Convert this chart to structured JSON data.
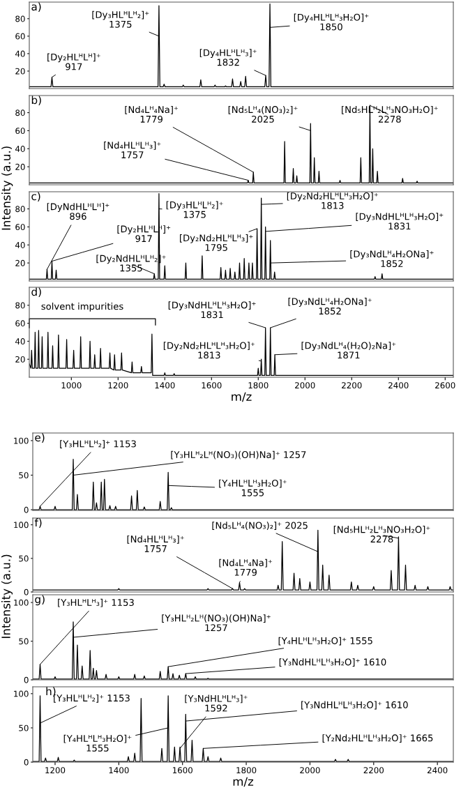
{
  "chart_data": [
    {
      "type": "line",
      "title": "a)",
      "color": "#000000",
      "xlim": [
        820,
        2635
      ],
      "ylim": [
        0,
        99
      ],
      "yticks": [
        20,
        40,
        60,
        80
      ],
      "tick_labels": "y",
      "x": [
        820,
        913,
        917,
        921,
        1371,
        1375,
        1379,
        1393,
        1397,
        1401,
        1475,
        1479,
        1483,
        1550,
        1554,
        1558,
        1611,
        1615,
        1619,
        1656,
        1660,
        1664,
        1686,
        1690,
        1694,
        1721,
        1725,
        1729,
        1742,
        1746,
        1750,
        1828,
        1832,
        1836,
        1846,
        1850,
        1854,
        2635
      ],
      "values": [
        2,
        2,
        13,
        2,
        2,
        95,
        2,
        2,
        5,
        2,
        2,
        4,
        2,
        2,
        10,
        2,
        2,
        4,
        2,
        2,
        3,
        2,
        2,
        11,
        2,
        2,
        8,
        2,
        2,
        14,
        2,
        2,
        15,
        2,
        2,
        97,
        2,
        2
      ],
      "annotations": [
        {
          "text": "[Dy₂HLᴴLᴴ]⁺\n917",
          "x": 917,
          "y": 13
        },
        {
          "text": "[Dy₃HLᴴLᴴ₂]⁺\n1375",
          "x": 1375,
          "y": 60
        },
        {
          "text": "[Dy₄HLᴴLᴴ₃]⁺\n1832",
          "x": 1832,
          "y": 15
        },
        {
          "text": "[Dy₄HLᴴLᴴ₃H₂O]⁺\n1850",
          "x": 1850,
          "y": 70
        }
      ]
    },
    {
      "type": "line",
      "title": "b)",
      "color": "#000000",
      "xlim": [
        820,
        2635
      ],
      "ylim": [
        0,
        99
      ],
      "yticks": [
        20,
        40,
        60,
        80
      ],
      "tick_labels": "y",
      "x": [
        820,
        1754,
        1757,
        1760,
        1776,
        1779,
        1782,
        1910,
        1913,
        1916,
        1947,
        1950,
        1953,
        1962,
        1965,
        1968,
        2021,
        2024,
        2027,
        2037,
        2040,
        2043,
        2057,
        2060,
        2063,
        2147,
        2150,
        2153,
        2236,
        2239,
        2242,
        2275,
        2278,
        2281,
        2287,
        2290,
        2293,
        2307,
        2310,
        2313,
        2415,
        2418,
        2421,
        2477,
        2480,
        2483,
        2635
      ],
      "values": [
        2,
        2,
        5,
        2,
        2,
        14,
        2,
        2,
        48,
        2,
        2,
        18,
        2,
        2,
        10,
        2,
        2,
        68,
        2,
        2,
        30,
        2,
        2,
        15,
        2,
        2,
        5,
        2,
        2,
        30,
        2,
        2,
        88,
        2,
        2,
        40,
        2,
        2,
        15,
        2,
        2,
        7,
        2,
        2,
        4,
        2,
        2
      ],
      "annotations": [
        {
          "text": "[Nd₄Lᴴ₄Na]⁺\n1779",
          "x": 1779,
          "y": 14
        },
        {
          "text": "[Nd₅Lᴴ₄(NO₃)₂]⁺\n2025",
          "x": 2025,
          "y": 60
        },
        {
          "text": "[Nd₅HLᴴ₂Lᴴ₃NO₃H₂O]⁺\n2278",
          "x": 2278,
          "y": 88
        },
        {
          "text": "[Nd₄HLᴴLᴴ₃]⁺\n1757",
          "x": 1757,
          "y": 5
        }
      ]
    },
    {
      "type": "line",
      "title": "c)",
      "ylabel": "Intensity (a.u.)",
      "color": "#000000",
      "xlim": [
        820,
        2635
      ],
      "ylim": [
        0,
        99
      ],
      "yticks": [
        20,
        40,
        60,
        80
      ],
      "tick_labels": "y",
      "x": [
        820,
        893,
        896,
        899,
        914,
        917,
        920,
        932,
        935,
        938,
        1352,
        1355,
        1358,
        1372,
        1375,
        1378,
        1397,
        1400,
        1403,
        1487,
        1490,
        1493,
        1557,
        1560,
        1563,
        1637,
        1640,
        1643,
        1657,
        1660,
        1663,
        1677,
        1680,
        1683,
        1697,
        1700,
        1703,
        1717,
        1720,
        1723,
        1737,
        1740,
        1743,
        1757,
        1760,
        1763,
        1772,
        1775,
        1778,
        1792,
        1795,
        1798,
        1810,
        1813,
        1816,
        1828,
        1831,
        1834,
        1849,
        1852,
        1855,
        1867,
        1870,
        1873,
        2297,
        2300,
        2303,
        2327,
        2330,
        2333,
        2635
      ],
      "values": [
        2,
        2,
        13,
        2,
        2,
        22,
        2,
        2,
        12,
        2,
        2,
        8,
        2,
        2,
        97,
        2,
        2,
        17,
        2,
        2,
        20,
        2,
        2,
        28,
        2,
        2,
        15,
        2,
        2,
        12,
        2,
        2,
        14,
        2,
        2,
        10,
        2,
        2,
        20,
        2,
        2,
        25,
        2,
        2,
        20,
        2,
        2,
        20,
        2,
        2,
        58,
        2,
        2,
        92,
        2,
        2,
        60,
        2,
        2,
        45,
        2,
        2,
        10,
        2,
        2,
        5,
        2,
        2,
        8,
        2,
        2
      ],
      "annotations": [
        {
          "text": "[DyNdHLᴴLᴴ]⁺\n896",
          "x": 896,
          "y": 13
        },
        {
          "text": "[Dy₂HLᴴLᴴ]⁺\n917",
          "x": 917,
          "y": 22
        },
        {
          "text": "[Dy₂NdHLᴴLᴴ₂]⁺\n1355",
          "x": 1355,
          "y": 8
        },
        {
          "text": "[Dy₃HLᴴLᴴ₂]⁺\n1375",
          "x": 1375,
          "y": 80
        },
        {
          "text": "[Dy₂Nd₂HLᴴLᴴ₃]⁺\n1795",
          "x": 1795,
          "y": 58
        },
        {
          "text": "[Dy₂Nd₂HLᴴLᴴ₃H₂O]⁺\n1813",
          "x": 1813,
          "y": 85
        },
        {
          "text": "[Dy₃NdHLᴴLᴴ₃H₂O]⁺\n1831",
          "x": 1831,
          "y": 55
        },
        {
          "text": "[Dy₃NdLᴴ₄H₂ONa]⁺\n1852",
          "x": 1852,
          "y": 20
        }
      ]
    },
    {
      "type": "line",
      "title": "d)",
      "xlabel": "m/z",
      "color": "#000000",
      "xlim": [
        820,
        2635
      ],
      "ylim": [
        0,
        100
      ],
      "yticks": [
        20,
        40,
        60,
        80
      ],
      "xticks": [
        1000,
        1200,
        1400,
        1600,
        1800,
        2000,
        2200,
        2400,
        2600
      ],
      "x": [
        820,
        827,
        830,
        833,
        842,
        845,
        848,
        857,
        860,
        863,
        872,
        875,
        878,
        897,
        900,
        903,
        917,
        920,
        923,
        942,
        945,
        948,
        977,
        980,
        983,
        1007,
        1010,
        1013,
        1037,
        1040,
        1043,
        1077,
        1080,
        1083,
        1097,
        1100,
        1103,
        1122,
        1125,
        1128,
        1162,
        1165,
        1168,
        1182,
        1185,
        1188,
        1212,
        1215,
        1218,
        1257,
        1260,
        1263,
        1297,
        1300,
        1303,
        1342,
        1345,
        1348,
        1397,
        1400,
        1403,
        1437,
        1440,
        1443,
        1797,
        1800,
        1803,
        1810,
        1813,
        1816,
        1828,
        1831,
        1834,
        1849,
        1852,
        1855,
        1868,
        1871,
        1874,
        2635
      ],
      "values": [
        15,
        10,
        30,
        10,
        10,
        50,
        10,
        10,
        52,
        10,
        10,
        45,
        10,
        10,
        50,
        10,
        10,
        35,
        10,
        10,
        47,
        10,
        10,
        42,
        10,
        10,
        30,
        10,
        10,
        45,
        10,
        10,
        40,
        10,
        10,
        25,
        10,
        10,
        32,
        10,
        10,
        27,
        10,
        8,
        25,
        8,
        8,
        27,
        8,
        5,
        17,
        5,
        5,
        12,
        5,
        5,
        48,
        2,
        2,
        5,
        2,
        2,
        4,
        2,
        2,
        10,
        2,
        2,
        20,
        2,
        2,
        55,
        2,
        2,
        55,
        2,
        2,
        25,
        2,
        2
      ],
      "annotations": [
        {
          "text": "[Dy₃NdHLᴴLᴴ₃H₂O]⁺\n1831",
          "x": 1831,
          "y": 55
        },
        {
          "text": "[Dy₃NdLᴴ₄H₂ONa]⁺\n1852",
          "x": 1852,
          "y": 55
        },
        {
          "text": "[Dy₂Nd₂HLᴴLᴴ₃H₂O]⁺\n1813",
          "x": 1813,
          "y": 18
        },
        {
          "text": "[Dy₃NdLᴴ₄(H₂O)₂Na]⁺\n1871",
          "x": 1871,
          "y": 25
        },
        "solvent impurities"
      ]
    },
    {
      "type": "line",
      "title": "e)",
      "color": "#000000",
      "xlim": [
        1130,
        2450
      ],
      "ylim": [
        -1,
        111
      ],
      "yticks": [
        0,
        50,
        100
      ],
      "tick_labels": "y",
      "x": [
        1130,
        1150,
        1153,
        1156,
        1197,
        1200,
        1203,
        1254,
        1257,
        1260,
        1267,
        1270,
        1273,
        1317,
        1320,
        1323,
        1327,
        1330,
        1333,
        1342,
        1345,
        1348,
        1352,
        1355,
        1358,
        1369,
        1372,
        1375,
        1387,
        1390,
        1393,
        1437,
        1440,
        1443,
        1455,
        1458,
        1461,
        1477,
        1480,
        1483,
        1527,
        1530,
        1533,
        1552,
        1555,
        1558,
        1562,
        1565,
        1568,
        2450
      ],
      "values": [
        0,
        0,
        5,
        0,
        0,
        5,
        0,
        0,
        73,
        0,
        0,
        22,
        0,
        0,
        40,
        0,
        0,
        10,
        0,
        0,
        40,
        0,
        0,
        44,
        0,
        0,
        6,
        0,
        0,
        5,
        0,
        0,
        20,
        0,
        0,
        28,
        0,
        0,
        4,
        0,
        0,
        12,
        0,
        0,
        54,
        0,
        0,
        3,
        0,
        0
      ],
      "annotations": [
        {
          "text": "[Y₃HLᴴLᴴ₂]⁺ 1153",
          "x": 1153,
          "y": 5
        },
        {
          "text": "[Y₃HLᴴ₂Lᴴ(NO₃)(OH)Na]⁺ 1257",
          "x": 1257,
          "y": 50
        },
        {
          "text": "[Y₄HLᴴLᴴ₃H₂O]⁺\n1555",
          "x": 1555,
          "y": 35
        }
      ]
    },
    {
      "type": "line",
      "title": "f)",
      "color": "#000000",
      "xlim": [
        1130,
        2450
      ],
      "ylim": [
        0,
        110
      ],
      "yticks": [
        0,
        50,
        100
      ],
      "tick_labels": "y",
      "x": [
        1130,
        1397,
        1400,
        1403,
        1677,
        1680,
        1683,
        1754,
        1757,
        1760,
        1776,
        1779,
        1782,
        1792,
        1795,
        1798,
        1897,
        1900,
        1903,
        1910,
        1913,
        1916,
        1947,
        1950,
        1953,
        1965,
        1968,
        1971,
        1997,
        2000,
        2003,
        2022,
        2025,
        2028,
        2037,
        2040,
        2043,
        2057,
        2060,
        2063,
        2127,
        2130,
        2133,
        2147,
        2150,
        2153,
        2197,
        2200,
        2203,
        2252,
        2255,
        2258,
        2275,
        2278,
        2281,
        2297,
        2300,
        2303,
        2327,
        2330,
        2333,
        2367,
        2370,
        2373,
        2437,
        2440,
        2443,
        2450
      ],
      "values": [
        3,
        3,
        5,
        3,
        3,
        5,
        3,
        3,
        5,
        3,
        3,
        14,
        3,
        3,
        5,
        3,
        3,
        10,
        3,
        3,
        75,
        3,
        3,
        28,
        3,
        3,
        20,
        3,
        3,
        15,
        3,
        3,
        92,
        3,
        3,
        40,
        3,
        3,
        25,
        3,
        3,
        15,
        3,
        3,
        10,
        3,
        3,
        8,
        3,
        3,
        32,
        3,
        3,
        82,
        3,
        3,
        40,
        3,
        3,
        10,
        3,
        3,
        8,
        3,
        3,
        8,
        3,
        3
      ],
      "annotations": [
        {
          "text": "[Nd₄HLᴴLᴴ₃]⁺\n1757",
          "x": 1757,
          "y": 5
        },
        {
          "text": "[Nd₄Lᴴ₄Na]⁺\n1779",
          "x": 1779,
          "y": 14
        },
        {
          "text": "[Nd₅Lᴴ₄(NO₃)₂]⁺ 2025",
          "x": 2025,
          "y": 60
        },
        {
          "text": "[Nd₅HLᴴ₂Lᴴ₃NO₃H₂O]⁺\n2278",
          "x": 2278,
          "y": 80
        }
      ]
    },
    {
      "type": "line",
      "title": "g)",
      "ylabel": "Intensity (a.u.)",
      "color": "#000000",
      "xlim": [
        1130,
        2450
      ],
      "ylim": [
        0,
        110
      ],
      "yticks": [
        0,
        50,
        100
      ],
      "tick_labels": "y",
      "x": [
        1130,
        1150,
        1153,
        1156,
        1197,
        1200,
        1203,
        1254,
        1257,
        1260,
        1267,
        1270,
        1273,
        1282,
        1285,
        1288,
        1307,
        1310,
        1313,
        1317,
        1320,
        1323,
        1327,
        1330,
        1333,
        1357,
        1360,
        1363,
        1397,
        1400,
        1403,
        1447,
        1450,
        1453,
        1477,
        1480,
        1483,
        1527,
        1530,
        1533,
        1552,
        1555,
        1558,
        1567,
        1570,
        1573,
        1587,
        1590,
        1593,
        1607,
        1610,
        1613,
        1637,
        1640,
        1643,
        1677,
        1680,
        1683,
        2450
      ],
      "values": [
        1,
        1,
        20,
        1,
        1,
        4,
        1,
        1,
        75,
        1,
        1,
        45,
        1,
        1,
        18,
        1,
        1,
        38,
        1,
        1,
        15,
        1,
        1,
        12,
        1,
        1,
        7,
        1,
        1,
        4,
        1,
        1,
        7,
        1,
        1,
        5,
        1,
        1,
        11,
        1,
        1,
        17,
        1,
        1,
        8,
        1,
        1,
        6,
        1,
        1,
        8,
        1,
        1,
        4,
        1,
        1,
        2,
        1,
        1
      ],
      "annotations": [
        {
          "text": "[Y₃HLᴴLᴴ₃]⁺ 1153",
          "x": 1153,
          "y": 20
        },
        {
          "text": "[Y₃HLᴴ₂Lᴴ(NO₃)(OH)Na]⁺\n1257",
          "x": 1257,
          "y": 55
        },
        {
          "text": "[Y₄HLᴴLᴴ₃H₂O]⁺ 1555",
          "x": 1555,
          "y": 17
        },
        {
          "text": "[Y₃NdHLᴴLᴴ₃H₂O]⁺ 1610",
          "x": 1610,
          "y": 8
        }
      ]
    },
    {
      "type": "line",
      "title": "h)",
      "xlabel": "m/z",
      "color": "#000000",
      "xlim": [
        1130,
        2450
      ],
      "ylim": [
        0,
        110
      ],
      "yticks": [
        0,
        50,
        100
      ],
      "xticks": [
        1200,
        1400,
        1600,
        1800,
        2000,
        2200,
        2400
      ],
      "x": [
        1130,
        1150,
        1153,
        1156,
        1167,
        1170,
        1173,
        1207,
        1210,
        1213,
        1257,
        1260,
        1263,
        1427,
        1430,
        1433,
        1447,
        1450,
        1453,
        1467,
        1470,
        1473,
        1532,
        1535,
        1538,
        1552,
        1555,
        1558,
        1572,
        1575,
        1578,
        1589,
        1592,
        1595,
        1607,
        1610,
        1613,
        1627,
        1630,
        1633,
        1662,
        1665,
        1668,
        1677,
        1680,
        1683,
        1717,
        1720,
        1723,
        2077,
        2080,
        2083,
        2117,
        2120,
        2123,
        2450
      ],
      "values": [
        1,
        1,
        97,
        1,
        1,
        6,
        1,
        1,
        7,
        1,
        1,
        3,
        1,
        1,
        8,
        1,
        1,
        13,
        1,
        1,
        93,
        1,
        1,
        20,
        1,
        1,
        97,
        1,
        1,
        22,
        1,
        1,
        22,
        1,
        1,
        70,
        1,
        1,
        32,
        1,
        1,
        20,
        1,
        1,
        8,
        1,
        1,
        6,
        1,
        1,
        4,
        1,
        1,
        4,
        1,
        1
      ],
      "annotations": [
        {
          "text": "[Y₃HLᴴLᴴ₂]⁺ 1153",
          "x": 1153,
          "y": 57
        },
        {
          "text": "[Y₃NdHLᴴLᴴ₃]⁺\n1592",
          "x": 1592,
          "y": 20
        },
        {
          "text": "[Y₃NdHLᴴLᴴ₃H₂O]⁺ 1610",
          "x": 1610,
          "y": 60
        },
        {
          "text": "[Y₄HLᴴLᴴ₃H₂O]⁺\n1555",
          "x": 1555,
          "y": 50
        },
        {
          "text": "[Y₂Nd₂HLᴴLᴴ₃H₂O]⁺ 1665",
          "x": 1665,
          "y": 20
        }
      ]
    }
  ]
}
